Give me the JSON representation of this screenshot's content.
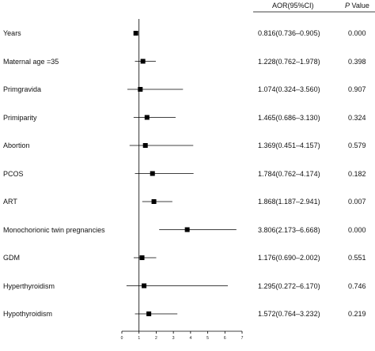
{
  "chart_data": {
    "type": "forest",
    "headers": {
      "estimate": "AOR(95%CI)",
      "p_italic": "P",
      "p_rest": " Value"
    },
    "rows": [
      {
        "label": "Years",
        "aor": 0.816,
        "lower": 0.736,
        "upper": 0.905,
        "ci_text": "0.816(0.736–0.905)",
        "p": "0.000"
      },
      {
        "label": "Maternal age =35",
        "aor": 1.228,
        "lower": 0.762,
        "upper": 1.978,
        "ci_text": "1.228(0.762–1.978)",
        "p": "0.398"
      },
      {
        "label": "Primgravida",
        "aor": 1.074,
        "lower": 0.324,
        "upper": 3.56,
        "ci_text": "1.074(0.324–3.560)",
        "p": "0.907"
      },
      {
        "label": "Primiparity",
        "aor": 1.465,
        "lower": 0.686,
        "upper": 3.13,
        "ci_text": "1.465(0.686–3.130)",
        "p": "0.324"
      },
      {
        "label": "Abortion",
        "aor": 1.369,
        "lower": 0.451,
        "upper": 4.157,
        "ci_text": "1.369(0.451–4.157)",
        "p": "0.579"
      },
      {
        "label": "PCOS",
        "aor": 1.784,
        "lower": 0.762,
        "upper": 4.174,
        "ci_text": "1.784(0.762–4.174)",
        "p": "0.182"
      },
      {
        "label": "ART",
        "aor": 1.868,
        "lower": 1.187,
        "upper": 2.941,
        "ci_text": "1.868(1.187–2.941)",
        "p": "0.007"
      },
      {
        "label": "Monochorionic twin pregnancies",
        "aor": 3.806,
        "lower": 2.173,
        "upper": 6.668,
        "ci_text": "3.806(2.173–6.668)",
        "p": "0.000"
      },
      {
        "label": "GDM",
        "aor": 1.176,
        "lower": 0.69,
        "upper": 2.002,
        "ci_text": "1.176(0.690–2.002)",
        "p": "0.551"
      },
      {
        "label": "Hyperthyroidism",
        "aor": 1.295,
        "lower": 0.272,
        "upper": 6.17,
        "ci_text": "1.295(0.272–6.170)",
        "p": "0.746"
      },
      {
        "label": "Hypothyroidism",
        "aor": 1.572,
        "lower": 0.764,
        "upper": 3.232,
        "ci_text": "1.572(0.764–3.232)",
        "p": "0.219"
      }
    ],
    "xaxis": {
      "min": 0,
      "max": 7,
      "ticks": [
        "0",
        "1",
        "2",
        "3",
        "4",
        "5",
        "6",
        "7"
      ]
    },
    "reference_line": 1,
    "colors": {
      "marker": "#000000",
      "ci_line": "#000000",
      "axis": "#000000",
      "header_rule": "#000000"
    }
  }
}
